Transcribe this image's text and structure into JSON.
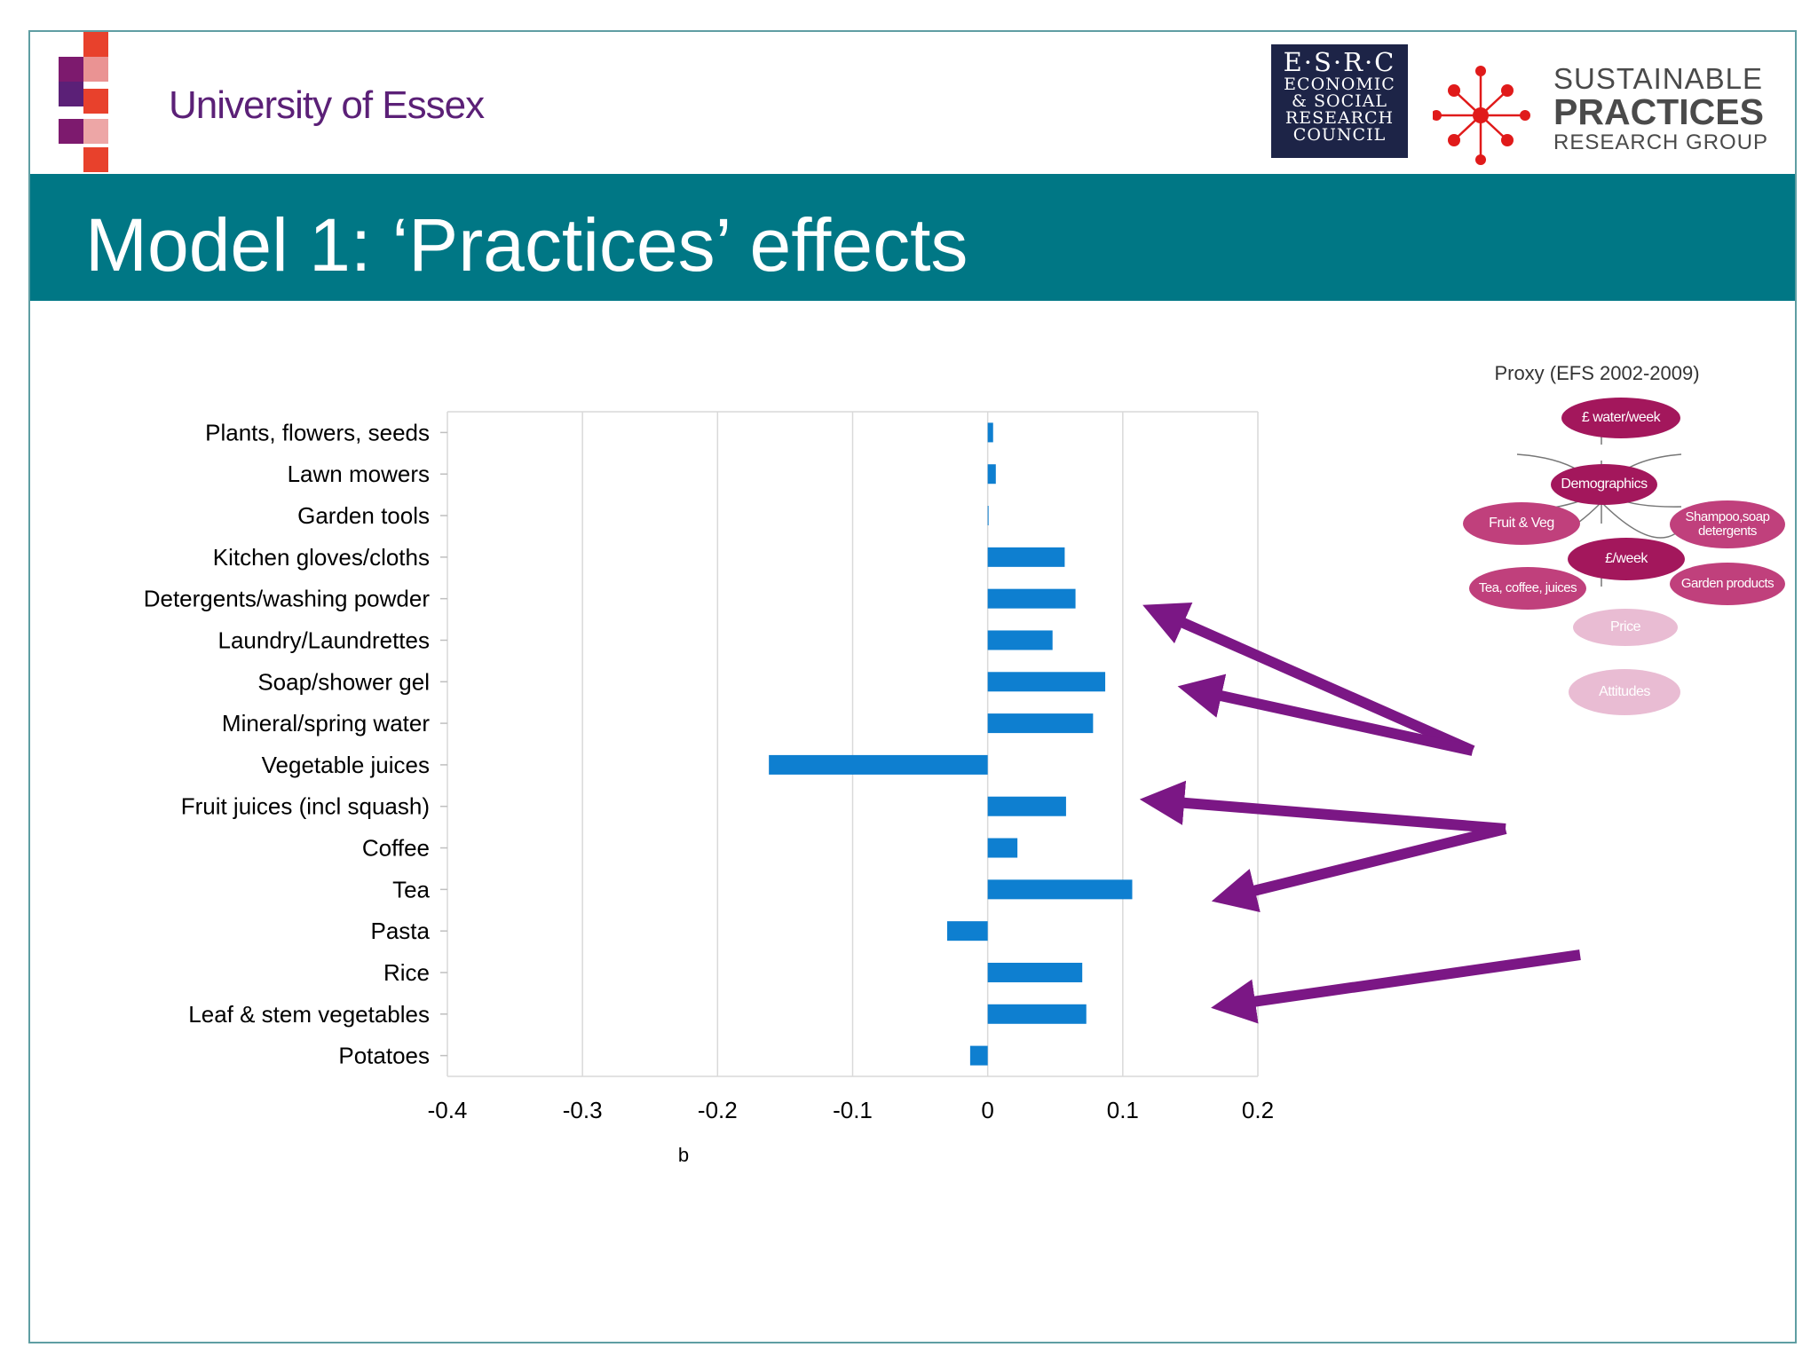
{
  "slide_title": "Model 1: ‘Practices’ effects",
  "logos": {
    "university": "University of Essex",
    "esrc_lines": [
      "E·S·R·C",
      "ECONOMIC",
      "& SOCIAL",
      "RESEARCH",
      "COUNCIL"
    ],
    "spr_lines": [
      "SUSTAINABLE",
      "PRACTICES",
      "RESEARCH GROUP"
    ]
  },
  "colors": {
    "header": "#007785",
    "bar": "#0e7fd0",
    "arrow": "#7b1785",
    "node_dark": "#a3175c",
    "node_mid": "#c0407c",
    "node_light": "#e9bcd3",
    "essex_purple": "#5b2077",
    "essex_red": "#e8412c",
    "spr_red": "#e01a1a"
  },
  "proxy_diagram": {
    "title": "Proxy (EFS 2002-2009)",
    "nodes": {
      "water": "£ water/week",
      "demographics": "Demographics",
      "fruit_veg": "Fruit & Veg",
      "shampoo": "Shampoo,soap detergents",
      "week": "£/week",
      "tea": "Tea, coffee, juices",
      "garden": "Garden products",
      "price": "Price",
      "attitudes": "Attitudes"
    }
  },
  "chart_data": {
    "type": "bar",
    "orientation": "horizontal",
    "title": "",
    "xlabel": "b",
    "ylabel": "",
    "xlim": [
      -0.4,
      0.2
    ],
    "xticks": [
      "-0.4",
      "-0.3",
      "-0.2",
      "-0.1",
      "0",
      "0.1",
      "0.2"
    ],
    "grid": true,
    "legend": "none",
    "categories": [
      "Plants, flowers, seeds",
      "Lawn mowers",
      "Garden tools",
      "Kitchen gloves/cloths",
      "Detergents/washing powder",
      "Laundry/Laundrettes",
      "Soap/shower gel",
      "Mineral/spring water",
      "Vegetable juices",
      "Fruit juices (incl squash)",
      "Coffee",
      "Tea",
      "Pasta",
      "Rice",
      "Leaf & stem vegetables",
      "Potatoes"
    ],
    "values": [
      0.004,
      0.006,
      0.0005,
      0.057,
      0.065,
      0.048,
      0.087,
      0.078,
      -0.162,
      0.058,
      0.022,
      0.107,
      -0.03,
      0.07,
      0.073,
      -0.013
    ]
  }
}
